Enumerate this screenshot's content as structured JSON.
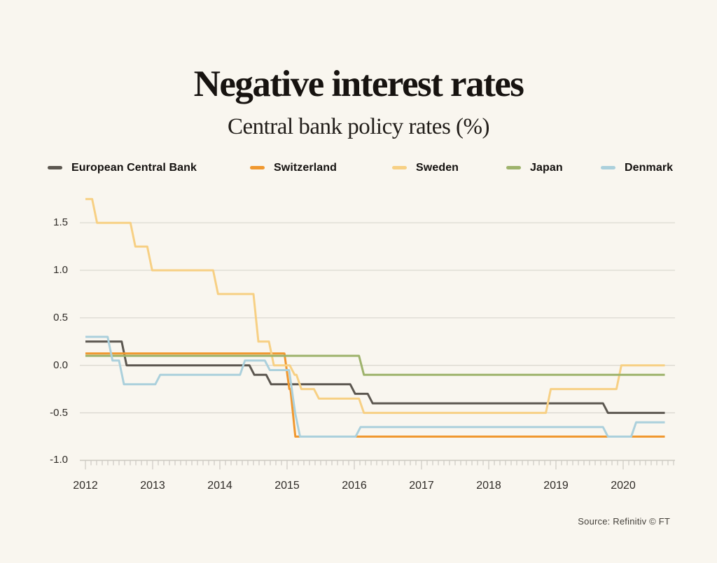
{
  "header": {
    "title": "Negative interest rates",
    "subtitle": "Central bank policy rates (%)"
  },
  "legend": [
    {
      "label": "European Central Bank",
      "color": "#5c5750"
    },
    {
      "label": "Switzerland",
      "color": "#f0982f"
    },
    {
      "label": "Sweden",
      "color": "#f7d084"
    },
    {
      "label": "Japan",
      "color": "#9eb36c"
    },
    {
      "label": "Denmark",
      "color": "#abd0dc"
    }
  ],
  "source": "Source: Refinitiv © FT",
  "colors": {
    "background": "#f9f6ef",
    "gridline": "#dcd9d1",
    "axis": "#ccc9c1",
    "text": "#2f2b27"
  },
  "chart_data": {
    "type": "line",
    "title": "Negative interest rates",
    "subtitle": "Central bank policy rates (%)",
    "unit": "%",
    "grid": true,
    "legend_position": "top",
    "x_axis": {
      "years": [
        "2012",
        "2013",
        "2014",
        "2015",
        "2016",
        "2017",
        "2018",
        "2019",
        "2020"
      ],
      "range": [
        2012.0,
        2020.78
      ],
      "minor_ticks": "monthly"
    },
    "y_axis": {
      "ticks": [
        1.5,
        1.0,
        0.5,
        0.0,
        -0.5,
        -1.0
      ],
      "labels": [
        "1.5",
        "1.0",
        "0.5",
        "0.0",
        "-0.5",
        "-1.0"
      ],
      "range": [
        -1.0,
        1.8
      ]
    },
    "series": [
      {
        "name": "European Central Bank",
        "color": "#5c5750",
        "steps": [
          [
            2012.0,
            0.25
          ],
          [
            2012.54,
            0.0
          ],
          [
            2014.44,
            -0.1
          ],
          [
            2014.69,
            -0.2
          ],
          [
            2015.94,
            -0.3
          ],
          [
            2016.2,
            -0.4
          ],
          [
            2019.7,
            -0.5
          ],
          [
            2020.62,
            -0.5
          ]
        ]
      },
      {
        "name": "Switzerland",
        "color": "#f0982f",
        "steps": [
          [
            2012.0,
            0.125
          ],
          [
            2014.96,
            -0.25
          ],
          [
            2015.05,
            -0.75
          ],
          [
            2020.62,
            -0.75
          ]
        ]
      },
      {
        "name": "Sweden",
        "color": "#f7d084",
        "steps": [
          [
            2012.0,
            1.75
          ],
          [
            2012.1,
            1.5
          ],
          [
            2012.67,
            1.25
          ],
          [
            2012.92,
            1.0
          ],
          [
            2013.9,
            0.75
          ],
          [
            2014.5,
            0.25
          ],
          [
            2014.73,
            0.0
          ],
          [
            2015.04,
            -0.1
          ],
          [
            2015.14,
            -0.25
          ],
          [
            2015.4,
            -0.35
          ],
          [
            2016.07,
            -0.5
          ],
          [
            2018.85,
            -0.25
          ],
          [
            2019.9,
            0.0
          ],
          [
            2020.62,
            0.0
          ]
        ]
      },
      {
        "name": "Japan",
        "color": "#9eb36c",
        "steps": [
          [
            2012.0,
            0.1
          ],
          [
            2016.07,
            -0.1
          ],
          [
            2020.62,
            -0.1
          ]
        ]
      },
      {
        "name": "Denmark",
        "color": "#abd0dc",
        "steps": [
          [
            2012.0,
            0.3
          ],
          [
            2012.33,
            0.05
          ],
          [
            2012.5,
            -0.2
          ],
          [
            2013.04,
            -0.1
          ],
          [
            2014.3,
            0.05
          ],
          [
            2014.67,
            -0.05
          ],
          [
            2015.03,
            -0.2
          ],
          [
            2015.06,
            -0.35
          ],
          [
            2015.09,
            -0.5
          ],
          [
            2015.12,
            -0.75
          ],
          [
            2016.02,
            -0.65
          ],
          [
            2019.7,
            -0.75
          ],
          [
            2020.12,
            -0.6
          ],
          [
            2020.62,
            -0.6
          ]
        ]
      }
    ]
  }
}
